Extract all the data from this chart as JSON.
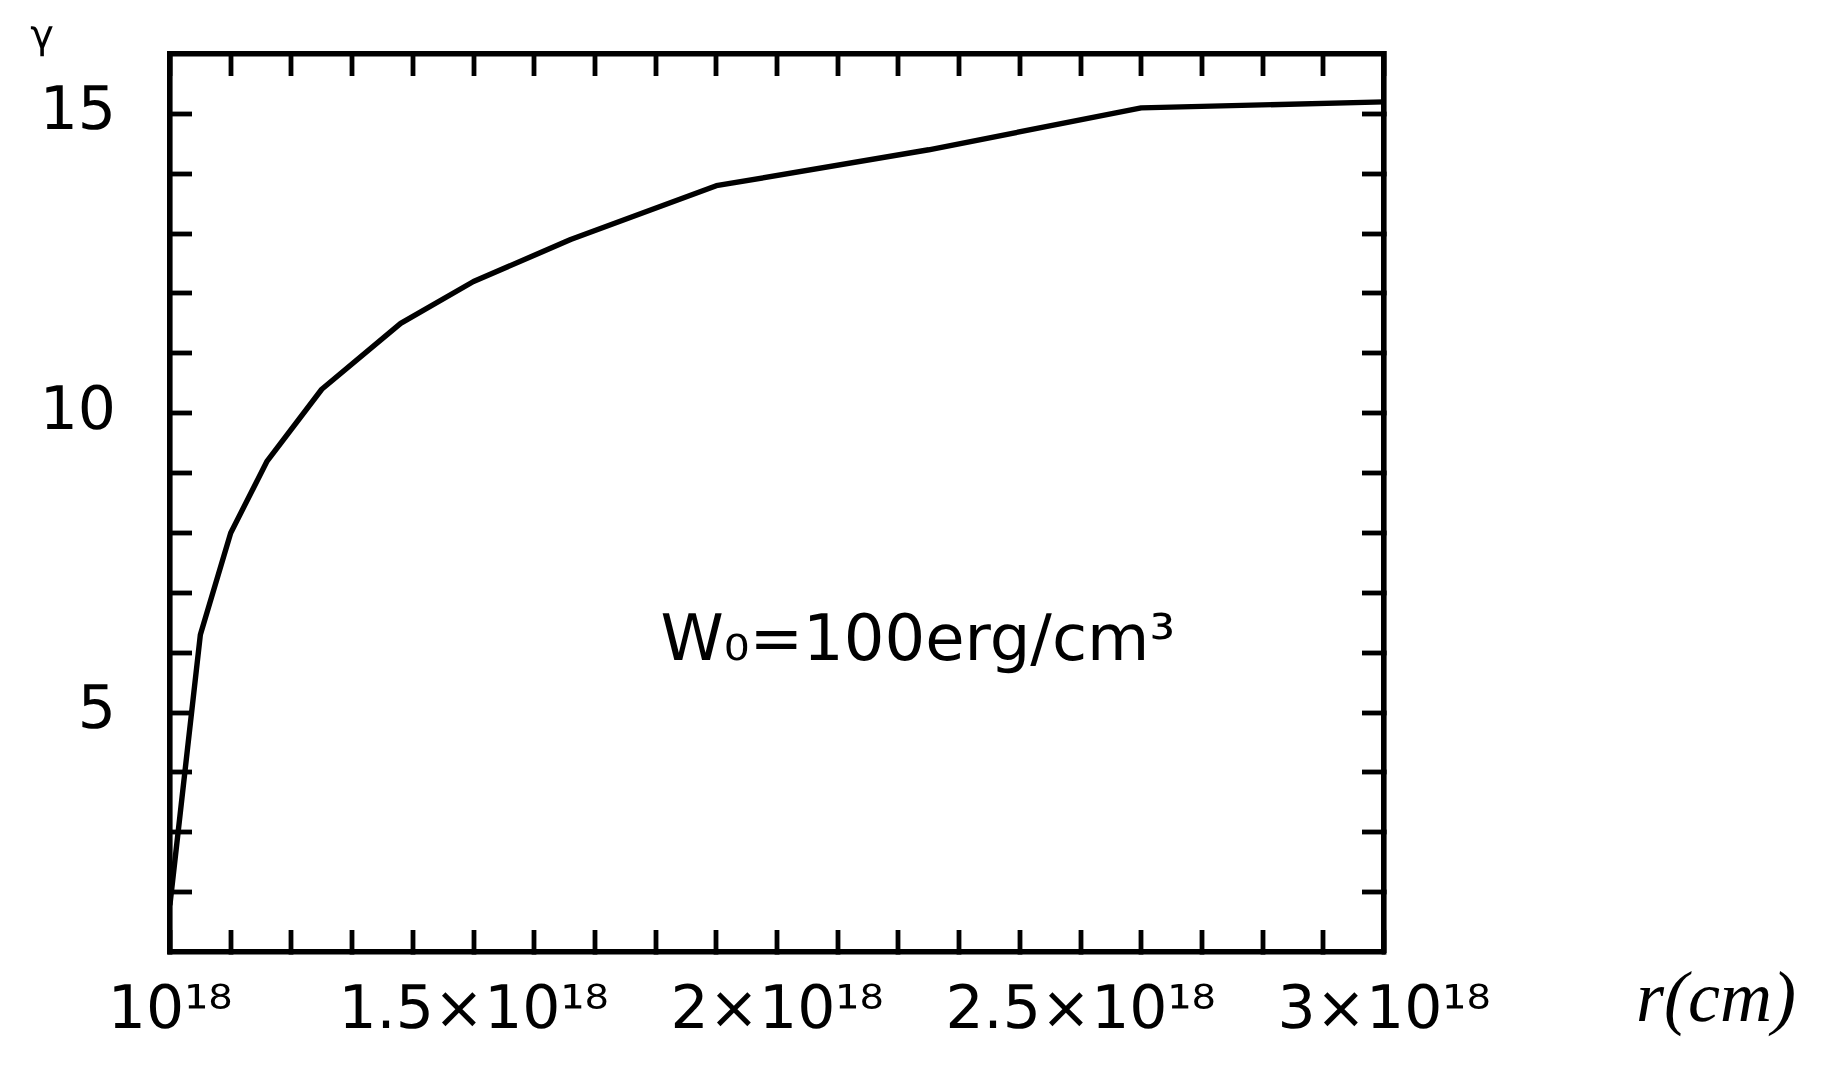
{
  "chart_data": {
    "type": "line",
    "ylabel": "γ",
    "xlabel": "r(cm)",
    "annotations": [
      "W₀=100erg/cm³"
    ],
    "x": [
      1e+18,
      1.05e+18,
      1.1e+18,
      1.16e+18,
      1.25e+18,
      1.38e+18,
      1.5e+18,
      1.66e+18,
      1.9e+18,
      2.25e+18,
      2.6e+18,
      3e+18
    ],
    "values": [
      1.8,
      6.3,
      8.0,
      9.2,
      10.4,
      11.5,
      12.2,
      12.9,
      13.8,
      14.4,
      15.1,
      15.2
    ],
    "color": "#000000",
    "line_style": "solid",
    "xlim": [
      1e+18,
      3e+18
    ],
    "xticks": [
      {
        "value": 1e+18,
        "label": "10¹⁸"
      },
      {
        "value": 1.1e+18,
        "label": null
      },
      {
        "value": 1.2e+18,
        "label": null
      },
      {
        "value": 1.3e+18,
        "label": null
      },
      {
        "value": 1.4e+18,
        "label": null
      },
      {
        "value": 1.5e+18,
        "label": "1.5×10¹⁸"
      },
      {
        "value": 1.6e+18,
        "label": null
      },
      {
        "value": 1.7e+18,
        "label": null
      },
      {
        "value": 1.8e+18,
        "label": null
      },
      {
        "value": 1.9e+18,
        "label": null
      },
      {
        "value": 2e+18,
        "label": "2×10¹⁸"
      },
      {
        "value": 2.1e+18,
        "label": null
      },
      {
        "value": 2.2e+18,
        "label": null
      },
      {
        "value": 2.3e+18,
        "label": null
      },
      {
        "value": 2.4e+18,
        "label": null
      },
      {
        "value": 2.5e+18,
        "label": "2.5×10¹⁸"
      },
      {
        "value": 2.6e+18,
        "label": null
      },
      {
        "value": 2.7e+18,
        "label": null
      },
      {
        "value": 2.8e+18,
        "label": null
      },
      {
        "value": 2.9e+18,
        "label": null
      },
      {
        "value": 3e+18,
        "label": "3×10¹⁸"
      }
    ],
    "ylim": [
      1,
      16
    ],
    "yticks": [
      {
        "value": 2,
        "label": null
      },
      {
        "value": 3,
        "label": null
      },
      {
        "value": 4,
        "label": null
      },
      5,
      {
        "value": 6,
        "label": null
      },
      {
        "value": 7,
        "label": null
      },
      {
        "value": 8,
        "label": null
      },
      {
        "value": 9,
        "label": null
      },
      10,
      {
        "value": 11,
        "label": null
      },
      {
        "value": 12,
        "label": null
      },
      {
        "value": 13,
        "label": null
      },
      {
        "value": 14,
        "label": null
      },
      15
    ]
  }
}
